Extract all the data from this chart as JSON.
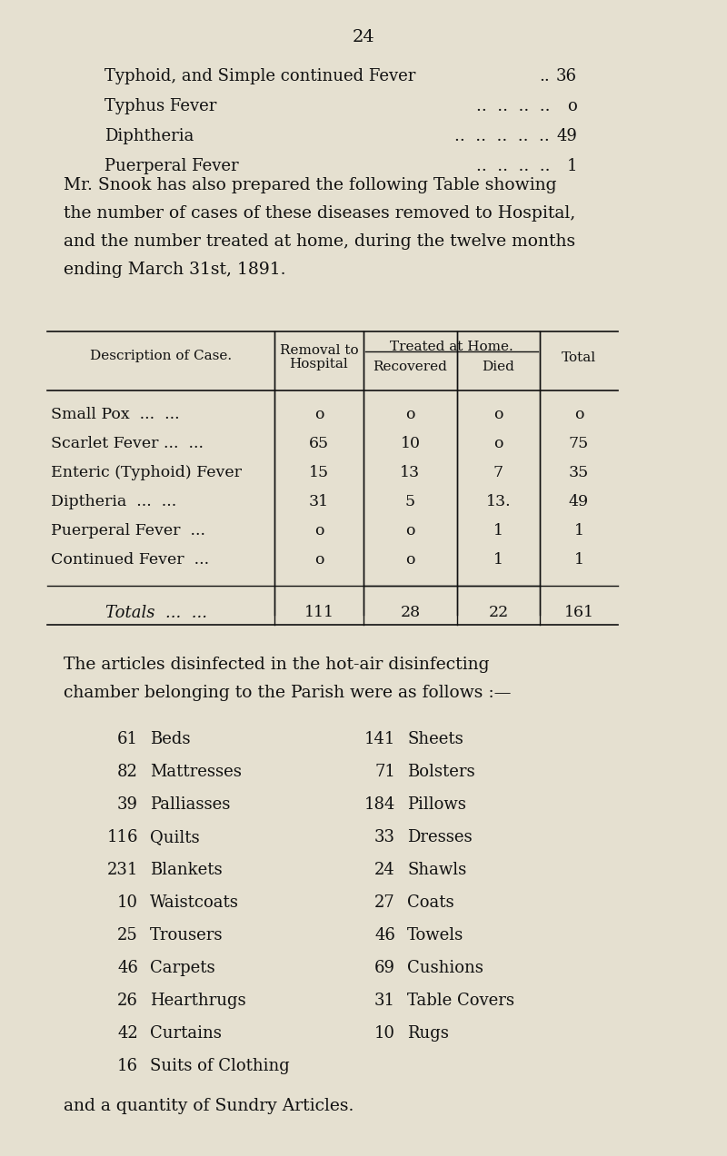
{
  "bg_color": "#e5e0d0",
  "text_color": "#111111",
  "page_number": "24",
  "intro_lines": [
    [
      "Typhoid, and Simple continued Fever  ..",
      "36"
    ],
    [
      "Typhus Fever  ..  ..  ..  ..",
      "o"
    ],
    [
      "Diphtheria  ..  ..  ..  ..  ..",
      "49"
    ],
    [
      "Puerperal Fever  ..  ..  ..  ..",
      "1"
    ]
  ],
  "para1_lines": [
    "Mr. Snook has also prepared the following Table showing",
    "the number of cases of these diseases removed to Hospital,",
    "and the number treated at home, during the twelve months",
    "ending March 31st, 1891."
  ],
  "para2_lines": [
    "The articles disinfected in the hot-air disinfecting",
    "chamber belonging to the Parish were as follows :—"
  ],
  "table_rows": [
    [
      "Small Pox  ...  ...",
      "o",
      "o",
      "o",
      "o"
    ],
    [
      "Scarlet Fever ...  ...",
      "65",
      "10",
      "o",
      "75"
    ],
    [
      "Enteric (Typhoid) Fever",
      "15",
      "13",
      "7",
      "35"
    ],
    [
      "Diptheria  ...  ...",
      "31",
      "5",
      "13.",
      "49"
    ],
    [
      "Puerperal Fever  ...",
      "o",
      "o",
      "1",
      "1"
    ],
    [
      "Continued Fever  ...",
      "o",
      "o",
      "1",
      "1"
    ]
  ],
  "totals_row": [
    "Totals  ...  ...",
    "111",
    "28",
    "22",
    "161"
  ],
  "items_left": [
    [
      "61",
      "Beds"
    ],
    [
      "82",
      "Mattresses"
    ],
    [
      "39",
      "Palliasses"
    ],
    [
      "116",
      "Quilts"
    ],
    [
      "231",
      "Blankets"
    ],
    [
      "10",
      "Waistcoats"
    ],
    [
      "25",
      "Trousers"
    ],
    [
      "46",
      "Carpets"
    ],
    [
      "26",
      "Hearthrugs"
    ],
    [
      "42",
      "Curtains"
    ],
    [
      "16",
      "Suits of Clothing"
    ]
  ],
  "items_right": [
    [
      "141",
      "Sheets"
    ],
    [
      "71",
      "Bolsters"
    ],
    [
      "184",
      "Pillows"
    ],
    [
      "33",
      "Dresses"
    ],
    [
      "24",
      "Shawls"
    ],
    [
      "27",
      "Coats"
    ],
    [
      "46",
      "Towels"
    ],
    [
      "69",
      "Cushions"
    ],
    [
      "31",
      "Table Covers"
    ],
    [
      "10",
      "Rugs"
    ],
    [
      "",
      ""
    ]
  ],
  "final_line": "and a quantity of Sundry Articles."
}
